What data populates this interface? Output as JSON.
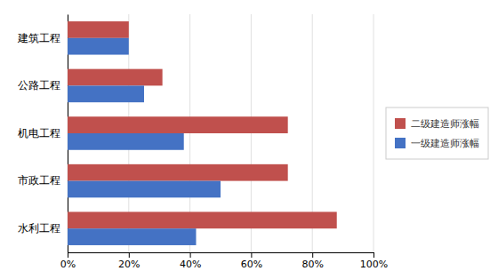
{
  "chart_data": {
    "type": "bar",
    "orientation": "horizontal",
    "categories": [
      "水利工程",
      "市政工程",
      "机电工程",
      "公路工程",
      "建筑工程"
    ],
    "series": [
      {
        "name": "二级建造师涨幅",
        "color": "#c0504d",
        "values": [
          0.88,
          0.72,
          0.72,
          0.31,
          0.2
        ]
      },
      {
        "name": "一级建造师涨幅",
        "color": "#4472c4",
        "values": [
          0.42,
          0.5,
          0.38,
          0.25,
          0.2
        ]
      }
    ],
    "xlim": [
      0,
      1.0
    ],
    "xticks": [
      {
        "value": 0,
        "label": "0%"
      },
      {
        "value": 0.2,
        "label": "20%"
      },
      {
        "value": 0.4,
        "label": "40%"
      },
      {
        "value": 0.6,
        "label": "60%"
      },
      {
        "value": 0.8,
        "label": "80%"
      },
      {
        "value": 1.0,
        "label": "100%"
      }
    ],
    "grid": true,
    "legend": "right"
  }
}
